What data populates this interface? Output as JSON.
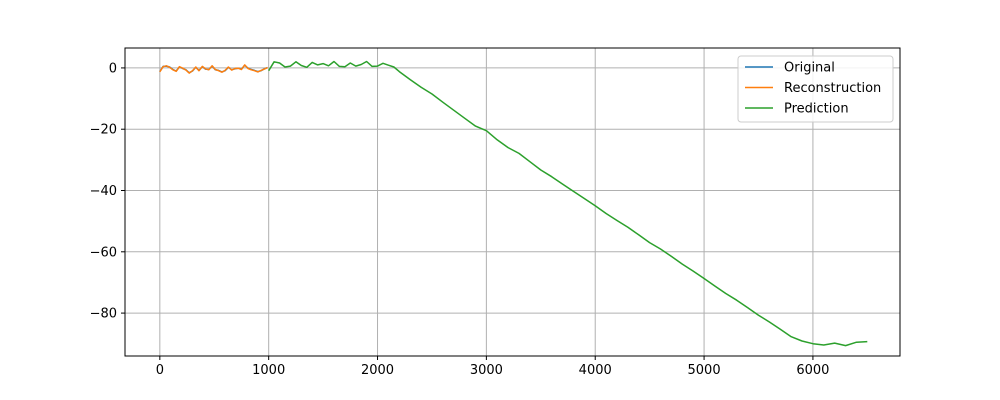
{
  "chart_data": {
    "type": "line",
    "title": "",
    "xlabel": "",
    "ylabel": "",
    "xlim": [
      -320,
      6800
    ],
    "ylim": [
      -94,
      6.5
    ],
    "xticks": [
      0,
      1000,
      2000,
      3000,
      4000,
      5000,
      6000
    ],
    "yticks": [
      0,
      -20,
      -40,
      -60,
      -80
    ],
    "xtick_labels": [
      "0",
      "1000",
      "2000",
      "3000",
      "4000",
      "5000",
      "6000"
    ],
    "ytick_labels": [
      "0",
      "−20",
      "−40",
      "−60",
      "−80"
    ],
    "grid": true,
    "legend_position": "top-right",
    "series": [
      {
        "name": "Original",
        "color": "#1f77b4",
        "x": [
          0,
          30,
          60,
          90,
          120,
          150,
          180,
          210,
          240,
          270,
          300,
          330,
          360,
          390,
          420,
          450,
          480,
          510,
          540,
          570,
          600,
          630,
          660,
          690,
          720,
          750,
          780,
          810,
          840,
          870,
          900,
          930,
          960,
          990
        ],
        "y": [
          -1.2,
          0.5,
          0.6,
          0.3,
          -0.5,
          -1.0,
          0.3,
          -0.2,
          -0.6,
          -1.6,
          -1.0,
          0.2,
          -0.8,
          0.4,
          -0.4,
          -0.5,
          0.6,
          -0.6,
          -0.8,
          -1.3,
          -0.9,
          0.2,
          -0.6,
          -0.3,
          -0.1,
          -0.4,
          0.9,
          -0.1,
          -0.5,
          -0.8,
          -1.2,
          -0.9,
          -0.3,
          0.1
        ]
      },
      {
        "name": "Reconstruction",
        "color": "#ff7f0e",
        "x": [
          0,
          30,
          60,
          90,
          120,
          150,
          180,
          210,
          240,
          270,
          300,
          330,
          360,
          390,
          420,
          450,
          480,
          510,
          540,
          570,
          600,
          630,
          660,
          690,
          720,
          750,
          780,
          810,
          840,
          870,
          900,
          930,
          960,
          990
        ],
        "y": [
          -1.3,
          0.4,
          0.7,
          0.2,
          -0.6,
          -1.1,
          0.4,
          -0.1,
          -0.7,
          -1.7,
          -0.9,
          0.3,
          -0.9,
          0.5,
          -0.3,
          -0.6,
          0.7,
          -0.5,
          -0.9,
          -1.4,
          -0.8,
          0.3,
          -0.7,
          -0.2,
          -0.1,
          -0.5,
          1.0,
          -0.2,
          -0.6,
          -0.9,
          -1.3,
          -0.8,
          -0.4,
          0.1
        ]
      },
      {
        "name": "Prediction",
        "color": "#2ca02c",
        "x": [
          1000,
          1050,
          1100,
          1150,
          1200,
          1250,
          1300,
          1350,
          1400,
          1450,
          1500,
          1550,
          1600,
          1650,
          1700,
          1750,
          1800,
          1850,
          1900,
          1950,
          2000,
          2050,
          2100,
          2150,
          2200,
          2300,
          2400,
          2500,
          2600,
          2700,
          2800,
          2900,
          3000,
          3100,
          3200,
          3300,
          3400,
          3500,
          3600,
          3700,
          3800,
          3900,
          4000,
          4100,
          4200,
          4300,
          4400,
          4500,
          4600,
          4700,
          4800,
          4900,
          5000,
          5100,
          5200,
          5300,
          5400,
          5500,
          5600,
          5700,
          5800,
          5900,
          6000,
          6100,
          6200,
          6300,
          6400,
          6500
        ],
        "y": [
          -0.9,
          2.0,
          1.6,
          0.3,
          0.6,
          2.0,
          0.8,
          0.2,
          1.8,
          1.0,
          1.4,
          0.7,
          2.1,
          0.5,
          0.4,
          1.6,
          0.6,
          1.1,
          2.1,
          0.5,
          0.6,
          1.5,
          0.9,
          0.3,
          -1.2,
          -3.8,
          -6.3,
          -8.5,
          -11.2,
          -13.8,
          -16.4,
          -19.0,
          -20.5,
          -23.5,
          -26.0,
          -27.9,
          -30.6,
          -33.3,
          -35.5,
          -37.9,
          -40.3,
          -42.6,
          -45.0,
          -47.5,
          -49.8,
          -52.0,
          -54.5,
          -57.0,
          -59.1,
          -61.5,
          -64.0,
          -66.3,
          -68.7,
          -71.2,
          -73.6,
          -75.8,
          -78.2,
          -80.7,
          -82.9,
          -85.3,
          -87.7,
          -89.1,
          -90.0,
          -90.4,
          -89.8,
          -90.6,
          -89.5,
          -89.3
        ]
      }
    ]
  }
}
